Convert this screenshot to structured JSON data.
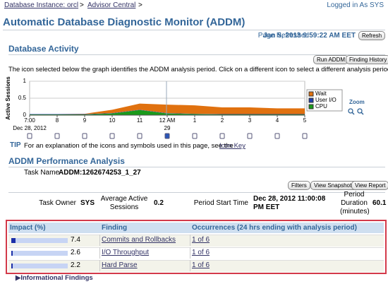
{
  "breadcrumb": {
    "items": [
      "Database Instance: orcl",
      "Advisor Central"
    ],
    "separator": ">"
  },
  "login": "Logged in As SYS",
  "title": "Automatic Database Diagnostic Monitor (ADDM)",
  "refresh": {
    "label": "Page Refreshed",
    "time": "Jan 5, 2013 9:59:22 AM EET",
    "button": "Refresh"
  },
  "activity": {
    "heading": "Database Activity",
    "buttons": [
      "Run ADDM",
      "Finding History"
    ],
    "instructions": "The icon selected below the graph identifies the ADDM analysis period. Click on a different icon to select a different analysis period.",
    "zoom": "Zoom",
    "chart": {
      "type": "area",
      "ylabel": "Active Sessions",
      "categories": [
        "7:00",
        "8",
        "9",
        "10",
        "11",
        "12 AM",
        "1",
        "2",
        "3",
        "4",
        "5"
      ],
      "date_labels": [
        "Dec 28, 2012",
        null,
        null,
        null,
        null,
        "29",
        null,
        null,
        null,
        null,
        null
      ],
      "ylim": [
        0,
        1
      ],
      "yticks": [
        0,
        0.5,
        1
      ],
      "stacked": true,
      "series": [
        {
          "name": "CPU",
          "color": "#1a9a1a",
          "values": [
            0.02,
            0.02,
            0.02,
            0.05,
            0.15,
            0.05,
            0.03,
            0.02,
            0.02,
            0.02,
            0.02
          ]
        },
        {
          "name": "User I/O",
          "color": "#1f3fae",
          "values": [
            0.01,
            0.01,
            0.01,
            0.01,
            0.01,
            0.01,
            0.01,
            0.01,
            0.01,
            0.01,
            0.01
          ]
        },
        {
          "name": "Wait",
          "color": "#e0710f",
          "values": [
            0,
            0,
            0.01,
            0.1,
            0.18,
            0.25,
            0.25,
            0.2,
            0.2,
            0.17,
            0.17
          ]
        }
      ],
      "legend": "right"
    }
  },
  "tip": {
    "label": "TIP",
    "text": "For an explanation of the icons and symbols used in this page, see the",
    "link": "Icon Key"
  },
  "analysis": {
    "heading": "ADDM Performance Analysis",
    "task_name_label": "Task Name",
    "task_name": "ADDM:1262674253_1_27",
    "buttons": [
      "Filters",
      "View Snapshots",
      "View Report"
    ],
    "fields": [
      {
        "label": "Task Owner",
        "value": "SYS"
      },
      {
        "label": "Average Active Sessions",
        "value": 0.2
      },
      {
        "label": "Period Start Time",
        "value": "Dec 28, 2012 11:00:08 PM EET"
      },
      {
        "label": "Period Duration (minutes)",
        "value": 60.1
      }
    ],
    "table": {
      "columns": [
        "Impact (%)",
        "Finding",
        "Occurrences (24 hrs ending with analysis period)"
      ],
      "rows": [
        {
          "impact": 7.4,
          "finding": "Commits and Rollbacks",
          "occurrences": "1 of 6"
        },
        {
          "impact": 2.6,
          "finding": "I/O Throughput",
          "occurrences": "1 of 6"
        },
        {
          "impact": 2.2,
          "finding": "Hard Parse",
          "occurrences": "1 of 6"
        }
      ]
    }
  },
  "informational": "Informational Findings"
}
